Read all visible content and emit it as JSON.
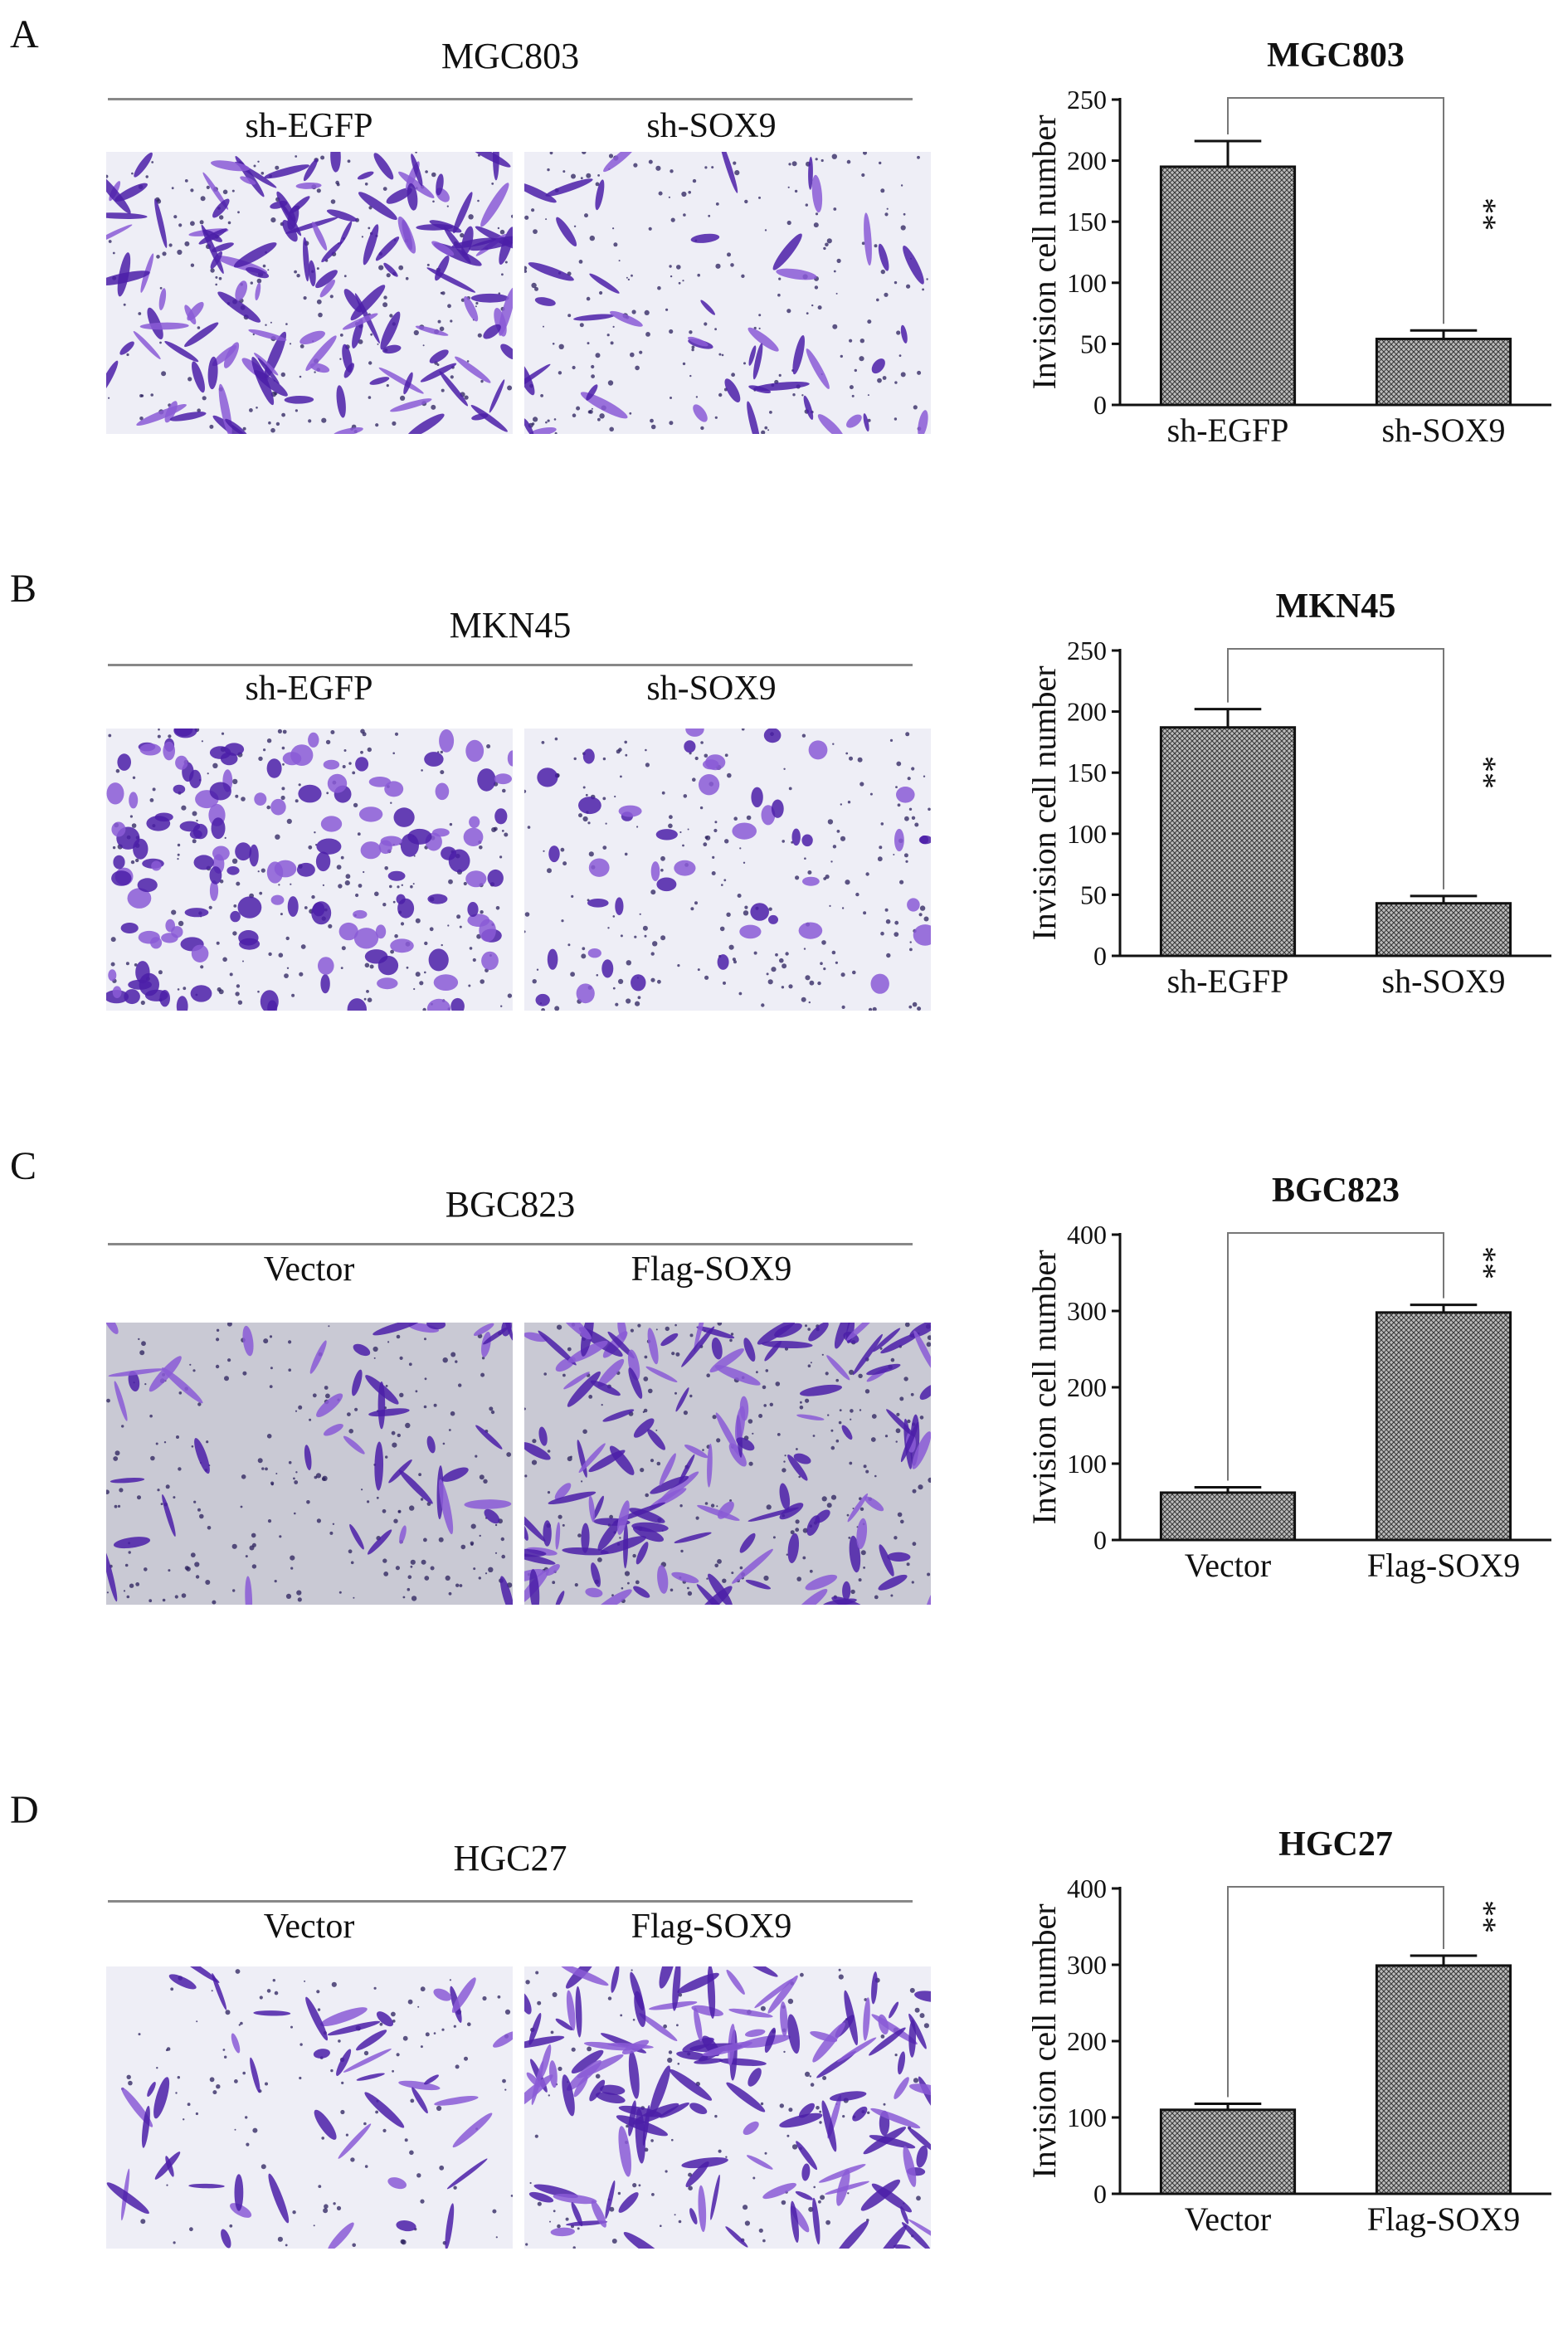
{
  "panels": [
    {
      "letter": "A",
      "cell_line": "MGC803",
      "conditions": [
        "sh-EGFP",
        "sh-SOX9"
      ],
      "image_style": "sparse-elongated",
      "chart_data": {
        "type": "bar",
        "title": "MGC803",
        "ylabel": "Invision cell number",
        "xlabel": "",
        "categories": [
          "sh-EGFP",
          "sh-SOX9"
        ],
        "values": [
          195,
          54
        ],
        "errors": [
          21,
          7
        ],
        "ylim": [
          0,
          250
        ],
        "yticks": [
          0,
          50,
          100,
          150,
          200,
          250
        ],
        "significance": "**",
        "bar_pattern": "crosshatch-grey"
      }
    },
    {
      "letter": "B",
      "cell_line": "MKN45",
      "conditions": [
        "sh-EGFP",
        "sh-SOX9"
      ],
      "image_style": "round-clumps",
      "chart_data": {
        "type": "bar",
        "title": "MKN45",
        "ylabel": "Invision cell number",
        "xlabel": "",
        "categories": [
          "sh-EGFP",
          "sh-SOX9"
        ],
        "values": [
          187,
          43
        ],
        "errors": [
          15,
          6
        ],
        "ylim": [
          0,
          250
        ],
        "yticks": [
          0,
          50,
          100,
          150,
          200,
          250
        ],
        "significance": "**",
        "bar_pattern": "crosshatch-grey"
      }
    },
    {
      "letter": "C",
      "cell_line": "BGC823",
      "conditions": [
        "Vector",
        "Flag-SOX9"
      ],
      "image_style": "grey-dense",
      "chart_data": {
        "type": "bar",
        "title": "BGC823",
        "ylabel": "Invision cell number",
        "xlabel": "",
        "categories": [
          "Vector",
          "Flag-SOX9"
        ],
        "values": [
          62,
          298
        ],
        "errors": [
          7,
          10
        ],
        "ylim": [
          0,
          400
        ],
        "yticks": [
          0,
          100,
          200,
          300,
          400
        ],
        "significance": "**",
        "bar_pattern": "crosshatch-grey"
      }
    },
    {
      "letter": "D",
      "cell_line": "HGC27",
      "conditions": [
        "Vector",
        "Flag-SOX9"
      ],
      "image_style": "light-spindle",
      "chart_data": {
        "type": "bar",
        "title": "HGC27",
        "ylabel": "Invision cell number",
        "xlabel": "",
        "categories": [
          "Vector",
          "Flag-SOX9"
        ],
        "values": [
          110,
          299
        ],
        "errors": [
          8,
          13
        ],
        "ylim": [
          0,
          400
        ],
        "yticks": [
          0,
          100,
          200,
          300,
          400
        ],
        "significance": "**",
        "bar_pattern": "crosshatch-grey"
      }
    }
  ],
  "colors": {
    "stain": "#4b1fa8",
    "stain_light": "#8a5bd6",
    "background_light": "#eeeef6",
    "background_grey": "#c9c9d4",
    "axis": "#111111",
    "bar_fill": "#8a8a8a"
  }
}
